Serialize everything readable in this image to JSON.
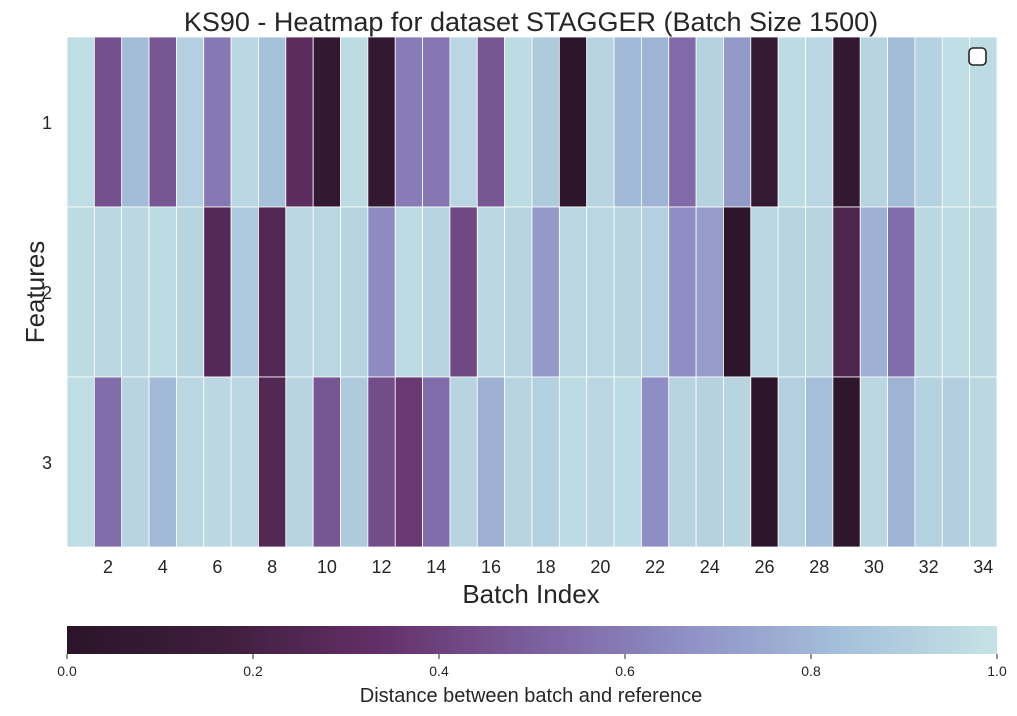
{
  "chart_data": {
    "type": "heatmap",
    "title": "KS90 - Heatmap for dataset STAGGER (Batch Size 1500)",
    "xlabel": "Batch Index",
    "ylabel": "Features",
    "x": [
      1,
      2,
      3,
      4,
      5,
      6,
      7,
      8,
      9,
      10,
      11,
      12,
      13,
      14,
      15,
      16,
      17,
      18,
      19,
      20,
      21,
      22,
      23,
      24,
      25,
      26,
      27,
      28,
      29,
      30,
      31,
      32,
      33,
      34
    ],
    "x_tick_labels": [
      "2",
      "4",
      "6",
      "8",
      "10",
      "12",
      "14",
      "16",
      "18",
      "20",
      "22",
      "24",
      "26",
      "28",
      "30",
      "32",
      "34"
    ],
    "y_tick_labels": [
      "1",
      "2",
      "3"
    ],
    "rows": [
      {
        "feature": "1",
        "values": [
          0.97,
          0.45,
          0.82,
          0.47,
          0.91,
          0.59,
          0.94,
          0.84,
          0.3,
          0.07,
          0.96,
          0.07,
          0.6,
          0.58,
          0.94,
          0.47,
          0.96,
          0.88,
          0.02,
          0.93,
          0.81,
          0.79,
          0.54,
          0.92,
          0.7,
          0.08,
          0.96,
          0.94,
          0.07,
          0.93,
          0.82,
          0.92,
          0.97,
          0.96
        ]
      },
      {
        "feature": "2",
        "values": [
          0.96,
          0.95,
          0.95,
          0.96,
          0.93,
          0.27,
          0.88,
          0.26,
          0.94,
          0.94,
          0.93,
          0.65,
          0.96,
          0.93,
          0.42,
          0.95,
          0.93,
          0.7,
          0.94,
          0.94,
          0.93,
          0.91,
          0.66,
          0.71,
          0.02,
          0.94,
          0.93,
          0.93,
          0.24,
          0.78,
          0.55,
          0.95,
          0.96,
          0.95
        ]
      },
      {
        "feature": "3",
        "values": [
          0.97,
          0.55,
          0.93,
          0.81,
          0.94,
          0.95,
          0.94,
          0.26,
          0.93,
          0.47,
          0.88,
          0.44,
          0.37,
          0.55,
          0.93,
          0.78,
          0.93,
          0.91,
          0.96,
          0.94,
          0.96,
          0.66,
          0.93,
          0.92,
          0.93,
          0.02,
          0.91,
          0.83,
          0.03,
          0.95,
          0.79,
          0.92,
          0.9,
          0.95
        ]
      }
    ],
    "legend_marker": "top-right",
    "colorbar": {
      "orientation": "horizontal",
      "label": "Distance between batch and reference",
      "range": [
        0.0,
        1.0
      ],
      "ticks": [
        "0.0",
        "0.2",
        "0.4",
        "0.6",
        "0.8",
        "1.0"
      ],
      "colormap_stops": [
        "#2b1429",
        "#3e1e3c",
        "#632f67",
        "#7b5e9d",
        "#8f90c6",
        "#a5c0da",
        "#c5e3e6"
      ]
    },
    "grid": false
  }
}
